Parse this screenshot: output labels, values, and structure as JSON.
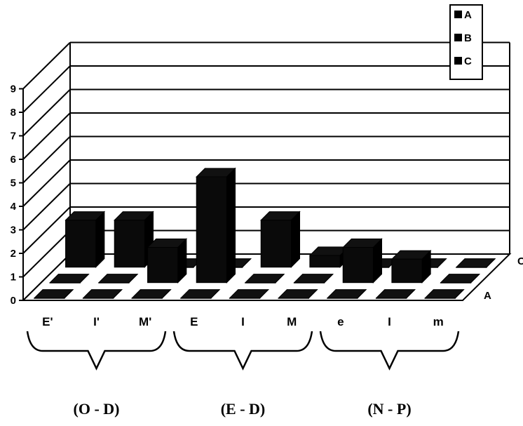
{
  "chart_data": {
    "type": "bar",
    "categories": [
      "E'",
      "I'",
      "M'",
      "E",
      "I",
      "M",
      "e",
      "I",
      "m"
    ],
    "series": [
      {
        "name": "A",
        "values": [
          0,
          0,
          0,
          0,
          0,
          0,
          0,
          0,
          0
        ]
      },
      {
        "name": "B",
        "values": [
          0,
          0,
          1.5,
          4.5,
          0,
          0,
          1.5,
          1,
          0
        ]
      },
      {
        "name": "C",
        "values": [
          2,
          2,
          0,
          0,
          2,
          0.5,
          0,
          0,
          0
        ]
      }
    ],
    "y_ticks": [
      "0",
      "1",
      "2",
      "3",
      "4",
      "5",
      "6",
      "7",
      "8",
      "9"
    ],
    "ylim": [
      0,
      9
    ],
    "depth_axis_labels": [
      "A",
      "C"
    ],
    "groups": [
      {
        "label": "(O - D)",
        "categories": [
          "E'",
          "I'",
          "M'"
        ]
      },
      {
        "label": "(E - D)",
        "categories": [
          "E",
          "I",
          "M"
        ]
      },
      {
        "label": "(N - P)",
        "categories": [
          "e",
          "I",
          "m"
        ]
      }
    ],
    "grid": true,
    "legend": {
      "position": "top-right",
      "entries": [
        "A",
        "B",
        "C"
      ]
    },
    "colors": {
      "bars": "#000000",
      "background": "#ffffff"
    }
  }
}
